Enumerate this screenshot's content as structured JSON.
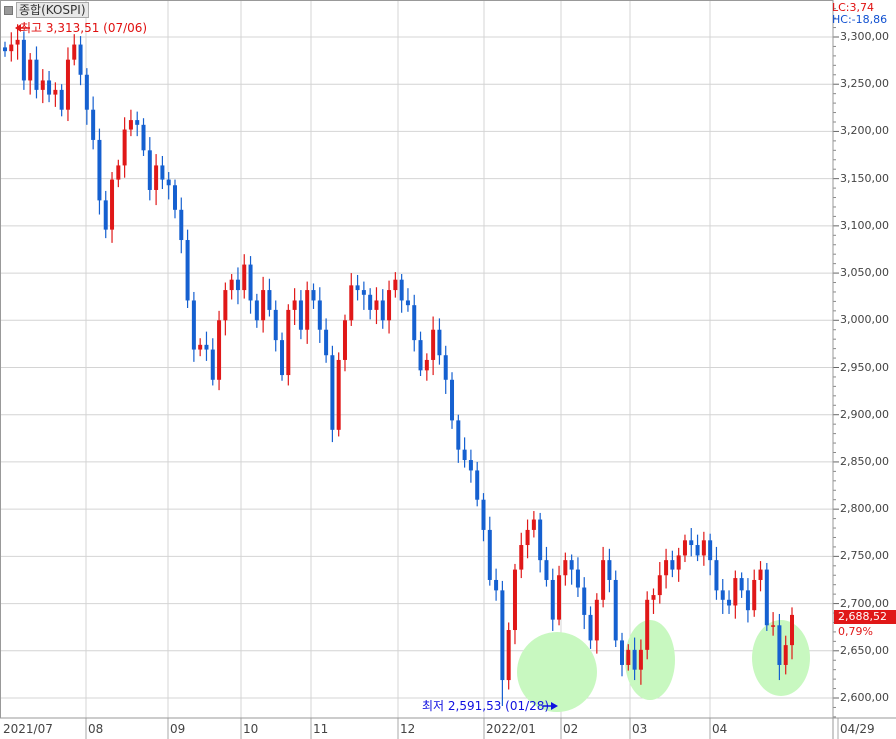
{
  "header": {
    "title": "종합(KOSPI)",
    "lc": "LC:3,74",
    "hc": "HC:-18,86"
  },
  "current": {
    "price_label": "2,688,52",
    "change_label": "0,79%"
  },
  "annotations": {
    "high": "최고 3,313,51 (07/06)",
    "low": "최저 2,591,53 (01/28)"
  },
  "colors": {
    "up": "#e01818",
    "down": "#1560d0",
    "highlight": "#c8f8c0",
    "grid": "#d4d4d4"
  },
  "chart_data": {
    "type": "candlestick",
    "title": "종합(KOSPI)",
    "ylim": [
      2575,
      3335
    ],
    "y_ticks": [
      "3,300,00",
      "3,250,00",
      "3,200,00",
      "3,150,00",
      "3,100,00",
      "3,050,00",
      "3,000,00",
      "2,950,00",
      "2,900,00",
      "2,850,00",
      "2,800,00",
      "2,750,00",
      "2,700,00",
      "2,650,00",
      "2,600,00"
    ],
    "y_tick_values": [
      3300,
      3250,
      3200,
      3150,
      3100,
      3050,
      3000,
      2950,
      2900,
      2850,
      2800,
      2750,
      2700,
      2650,
      2600
    ],
    "x_ticks": [
      "2021/07",
      "08",
      "09",
      "10",
      "11",
      "12",
      "2022/01",
      "02",
      "03",
      "04",
      "04/29"
    ],
    "grid": true,
    "period_high": 3313.51,
    "period_low": 2591.53,
    "last": 2688.52,
    "closes": [
      3285,
      3292,
      3297,
      3254,
      3276,
      3244,
      3254,
      3239,
      3244,
      3223,
      3276,
      3292,
      3260,
      3223,
      3191,
      3127,
      3096,
      3149,
      3164,
      3202,
      3212,
      3207,
      3180,
      3138,
      3164,
      3149,
      3143,
      3117,
      3085,
      3021,
      2969,
      2974,
      2969,
      2937,
      3000,
      3032,
      3043,
      3032,
      3059,
      3021,
      3000,
      3032,
      3011,
      2979,
      2942,
      3011,
      3021,
      2990,
      3032,
      3021,
      2990,
      2963,
      2884,
      2958,
      3000,
      3037,
      3032,
      3027,
      3011,
      3021,
      3000,
      3032,
      3043,
      3021,
      3016,
      2979,
      2947,
      2958,
      2990,
      2963,
      2937,
      2894,
      2863,
      2852,
      2841,
      2810,
      2778,
      2725,
      2714,
      2619,
      2672,
      2736,
      2762,
      2778,
      2789,
      2746,
      2725,
      2683,
      2730,
      2746,
      2736,
      2717,
      2688,
      2661,
      2704,
      2746,
      2725,
      2661,
      2635,
      2651,
      2630,
      2651,
      2704,
      2709,
      2730,
      2746,
      2736,
      2751,
      2767,
      2762,
      2751,
      2767,
      2746,
      2714,
      2704,
      2698,
      2727,
      2714,
      2693,
      2725,
      2736,
      2677,
      2677,
      2635,
      2656,
      2688
    ]
  }
}
